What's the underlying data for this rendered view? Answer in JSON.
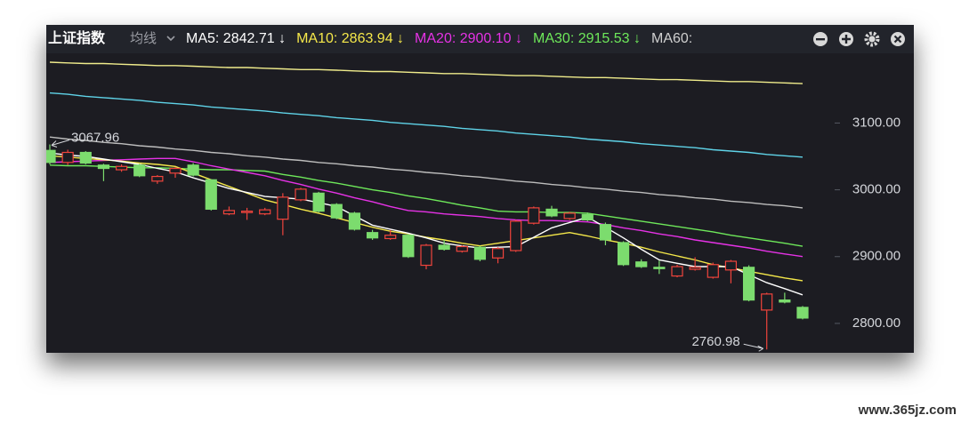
{
  "chart_data": {
    "type": "candlestick",
    "title": "上证指数",
    "ma_selector": "均线",
    "legend": [
      {
        "label": "MA5: 2842.71 ↓",
        "color": "#ffffff"
      },
      {
        "label": "MA10: 2863.94 ↓",
        "color": "#f5e84a"
      },
      {
        "label": "MA20: 2900.10 ↓",
        "color": "#e632e6"
      },
      {
        "label": "MA30: 2915.53 ↓",
        "color": "#6ee85a"
      },
      {
        "label": "MA60:",
        "color": "#cfcfcf"
      }
    ],
    "max_label": "3067.96",
    "min_label": "2760.98",
    "watermark": "www.365jz.com",
    "ylim": [
      2756,
      3203
    ],
    "yticks": [
      {
        "value": 2800,
        "label": "2800.00"
      },
      {
        "value": 2900,
        "label": "2900.00"
      },
      {
        "value": 3000,
        "label": "3000.00"
      },
      {
        "value": 3100,
        "label": "3100.00"
      }
    ],
    "up_color": "#f0443c",
    "down_color": "#7cdc6e",
    "candles": {
      "open": [
        3059,
        3041,
        3056,
        3037,
        3030,
        3037,
        3013,
        3025,
        3037,
        3015,
        2964,
        2966,
        2964,
        2956,
        2985,
        2995,
        2978,
        2965,
        2936,
        2927,
        2932,
        2887,
        2917,
        2908,
        2914,
        2898,
        2909,
        2950,
        2971,
        2957,
        2963,
        2948,
        2921,
        2892,
        2884,
        2871,
        2881,
        2869,
        2880,
        2884,
        2820,
        2835,
        2824
      ],
      "close": [
        3041,
        3056,
        3040,
        3032,
        3035,
        3021,
        3020,
        3032,
        3022,
        2971,
        2969,
        2968,
        2970,
        2989,
        3001,
        2968,
        2958,
        2941,
        2928,
        2932,
        2900,
        2917,
        2911,
        2915,
        2896,
        2912,
        2953,
        2973,
        2961,
        2965,
        2955,
        2925,
        2888,
        2885,
        2882,
        2885,
        2884,
        2888,
        2893,
        2835,
        2844,
        2832,
        2808
      ],
      "high": [
        3067.96,
        3060,
        3058,
        3039,
        3038,
        3039,
        3022,
        3034,
        3040,
        3016,
        2975,
        2973,
        2973,
        2995,
        3003,
        2997,
        2980,
        2967,
        2940,
        2940,
        2934,
        2919,
        2925,
        2917,
        2916,
        2914,
        2955,
        2975,
        2976,
        2967,
        2966,
        2951,
        2923,
        2896,
        2894,
        2888,
        2899,
        2891,
        2895,
        2887,
        2846,
        2846,
        2826
      ],
      "low": [
        3038,
        3037,
        3038,
        3013,
        3027,
        3019,
        3009,
        3018,
        3020,
        2969,
        2962,
        2955,
        2962,
        2932,
        2983,
        2966,
        2956,
        2939,
        2925,
        2925,
        2898,
        2881,
        2909,
        2906,
        2893,
        2890,
        2907,
        2948,
        2959,
        2955,
        2953,
        2917,
        2886,
        2883,
        2874,
        2869,
        2879,
        2867,
        2860,
        2833,
        2760.98,
        2830,
        2806
      ]
    },
    "series": [
      {
        "color": "#f0ec8c",
        "values": [
          3191,
          3190,
          3189,
          3189,
          3188,
          3187,
          3186,
          3186,
          3185,
          3184,
          3183,
          3183,
          3182,
          3181,
          3180,
          3180,
          3179,
          3178,
          3177,
          3177,
          3176,
          3175,
          3174,
          3174,
          3173,
          3172,
          3171,
          3171,
          3170,
          3169,
          3168,
          3168,
          3167,
          3166,
          3165,
          3165,
          3164,
          3163,
          3162,
          3162,
          3161,
          3160,
          3159
        ]
      },
      {
        "color": "#5fd3e8",
        "values": [
          3145,
          3143,
          3140,
          3138,
          3136,
          3134,
          3131,
          3129,
          3127,
          3124,
          3122,
          3120,
          3118,
          3115,
          3113,
          3111,
          3108,
          3106,
          3104,
          3101,
          3099,
          3097,
          3095,
          3092,
          3090,
          3088,
          3085,
          3083,
          3081,
          3079,
          3076,
          3074,
          3072,
          3069,
          3067,
          3065,
          3063,
          3060,
          3058,
          3056,
          3053,
          3051,
          3049
        ]
      },
      {
        "color": "#bdbdbd",
        "values": [
          3079,
          3076,
          3074,
          3071,
          3069,
          3066,
          3064,
          3061,
          3059,
          3056,
          3054,
          3051,
          3049,
          3046,
          3044,
          3041,
          3039,
          3036,
          3034,
          3031,
          3029,
          3026,
          3024,
          3021,
          3019,
          3016,
          3013,
          3011,
          3008,
          3006,
          3003,
          3001,
          2998,
          2996,
          2993,
          2991,
          2988,
          2986,
          2983,
          2981,
          2978,
          2976,
          2973
        ]
      },
      {
        "color": "#6ee85a",
        "values": [
          3037,
          3036,
          3036,
          3035,
          3034,
          3033,
          3033,
          3032,
          3031,
          3030,
          3030,
          3029,
          3028,
          3023,
          3019,
          3014,
          3010,
          3005,
          3000,
          2996,
          2991,
          2987,
          2982,
          2977,
          2973,
          2968,
          2967,
          2967,
          2966,
          2966,
          2965,
          2961,
          2957,
          2953,
          2949,
          2945,
          2941,
          2937,
          2932,
          2928,
          2924,
          2920,
          2915.53
        ]
      },
      {
        "color": "#e632e6",
        "values": [
          3041,
          3042,
          3043,
          3044,
          3045,
          3046,
          3047,
          3047,
          3042,
          3036,
          3031,
          3026,
          3021,
          3014,
          3008,
          3001,
          2995,
          2988,
          2982,
          2975,
          2969,
          2967,
          2964,
          2962,
          2960,
          2957,
          2955,
          2954,
          2954,
          2953,
          2952,
          2948,
          2943,
          2939,
          2934,
          2930,
          2925,
          2921,
          2917,
          2913,
          2908,
          2904,
          2900.1
        ]
      },
      {
        "color": "#f5e84a",
        "values": [
          3051,
          3049,
          3047,
          3045,
          3043,
          3040,
          3038,
          3035,
          3025,
          3015,
          3005,
          2995,
          2985,
          2978,
          2971,
          2965,
          2958,
          2951,
          2944,
          2938,
          2934,
          2929,
          2925,
          2920,
          2916,
          2920,
          2924,
          2928,
          2932,
          2936,
          2931,
          2925,
          2920,
          2914,
          2907,
          2901,
          2895,
          2888,
          2883,
          2878,
          2873,
          2868,
          2863.94
        ]
      },
      {
        "color": "#ffffff",
        "values": [
          3055,
          3052,
          3050,
          3046,
          3042,
          3038,
          3032,
          3027,
          3018,
          3010,
          3002,
          2996,
          2990,
          2988,
          2986,
          2981,
          2975,
          2961,
          2947,
          2941,
          2935,
          2928,
          2920,
          2916,
          2913,
          2914,
          2915,
          2929,
          2943,
          2951,
          2959,
          2944,
          2928,
          2911,
          2895,
          2890,
          2885,
          2885,
          2885,
          2873,
          2861,
          2852,
          2842.71
        ]
      }
    ]
  }
}
